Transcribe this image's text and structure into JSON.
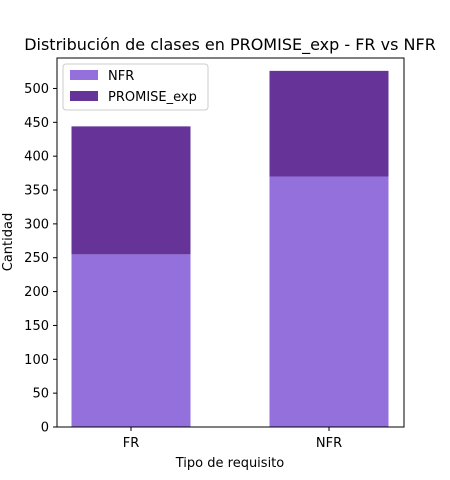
{
  "chart_data": {
    "type": "bar",
    "stacked": true,
    "title": "Distribución de clases en PROMISE_exp - FR vs NFR",
    "xlabel": "Tipo de requisito",
    "ylabel": "Cantidad",
    "categories": [
      "FR",
      "NFR"
    ],
    "series": [
      {
        "name": "NFR",
        "values": [
          255,
          370
        ],
        "color": "#9370db"
      },
      {
        "name": "PROMISE_exp",
        "values": [
          189,
          156
        ],
        "color": "#663399"
      }
    ],
    "ylim": [
      0,
      545
    ],
    "yticks": [
      0,
      50,
      100,
      150,
      200,
      250,
      300,
      350,
      400,
      450,
      500
    ],
    "grid": false,
    "legend_position": "top-left"
  }
}
